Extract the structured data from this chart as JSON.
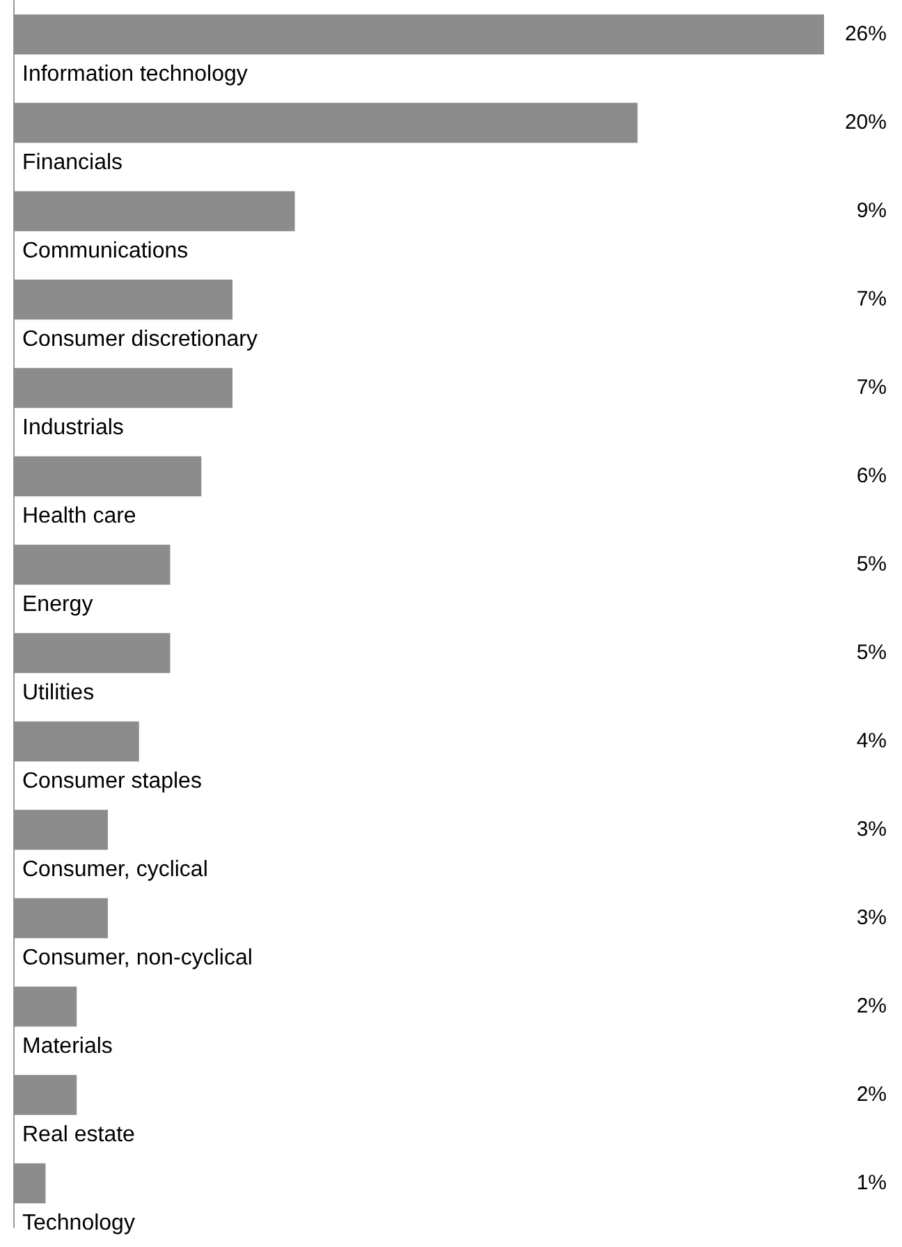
{
  "chart_data": {
    "type": "bar",
    "orientation": "horizontal",
    "tick_labels": false,
    "categories": [
      "Information technology",
      "Financials",
      "Communications",
      "Consumer discretionary",
      "Industrials",
      "Health care",
      "Energy",
      "Utilities",
      "Consumer staples",
      "Consumer, cyclical",
      "Consumer, non-cyclical",
      "Materials",
      "Real estate",
      "Technology"
    ],
    "values": [
      26,
      20,
      9,
      7,
      7,
      6,
      5,
      5,
      4,
      3,
      3,
      2,
      2,
      1
    ],
    "value_labels": [
      "26%",
      "20%",
      "9%",
      "7%",
      "7%",
      "6%",
      "5%",
      "5%",
      "4%",
      "3%",
      "3%",
      "2%",
      "2%",
      "1%"
    ],
    "color": "#8c8c8c"
  }
}
